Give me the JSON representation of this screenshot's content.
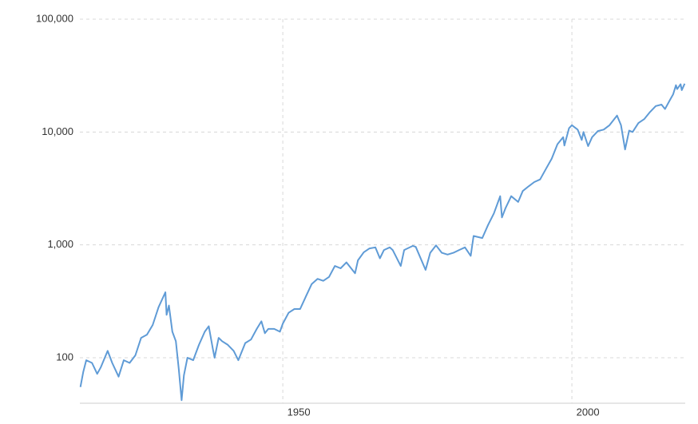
{
  "chart_data": {
    "type": "line",
    "log_y": true,
    "grid": true,
    "color": "#5f9bd6",
    "xlim": [
      1914.9,
      2019.6
    ],
    "xticks": [
      1950,
      2000
    ],
    "ylim": [
      39.5,
      100000
    ],
    "yticks": [
      {
        "value": 100,
        "label": "100"
      },
      {
        "value": 1000,
        "label": "1,000"
      },
      {
        "value": 10000,
        "label": "10,000"
      },
      {
        "value": 100000,
        "label": "100,000"
      }
    ],
    "x": [
      1915.0,
      1915.5,
      1916,
      1917,
      1917.9,
      1918.5,
      1919.7,
      1920.5,
      1921.6,
      1922.5,
      1923.5,
      1924.5,
      1925.5,
      1926.5,
      1927.5,
      1928.5,
      1929.7,
      1929.9,
      1930.3,
      1930.9,
      1931.5,
      1932.0,
      1932.5,
      1932.9,
      1933.5,
      1934.5,
      1935.5,
      1936.5,
      1937.2,
      1937.9,
      1938.2,
      1938.9,
      1939.5,
      1940.5,
      1941.5,
      1942.3,
      1943.5,
      1944.5,
      1945.5,
      1946.3,
      1946.9,
      1947.5,
      1948.5,
      1949.5,
      1950,
      1951,
      1952,
      1953,
      1954,
      1955,
      1956,
      1957,
      1958,
      1959,
      1960,
      1961,
      1962.5,
      1963,
      1964,
      1965,
      1966,
      1966.8,
      1967.5,
      1968.5,
      1969,
      1970.4,
      1971,
      1972.5,
      1973,
      1974.7,
      1975.5,
      1976.5,
      1977.5,
      1978.5,
      1979.5,
      1980.5,
      1981.5,
      1982.5,
      1983,
      1984.5,
      1985.5,
      1986.5,
      1987.6,
      1987.9,
      1988.5,
      1989.5,
      1990.7,
      1991.5,
      1992.5,
      1993.5,
      1994.5,
      1995.5,
      1996.5,
      1997.5,
      1998.5,
      1998.7,
      1999.5,
      2000,
      2001,
      2001.7,
      2002,
      2002.8,
      2003.5,
      2004.5,
      2005.5,
      2006.5,
      2007.8,
      2008.5,
      2009.2,
      2009.9,
      2010.5,
      2011.5,
      2012.5,
      2013.5,
      2014.5,
      2015.5,
      2016.1,
      2016.9,
      2017.5,
      2018.0,
      2018.2,
      2018.8,
      2019,
      2019.5
    ],
    "values": [
      55,
      75,
      95,
      90,
      72,
      82,
      115,
      90,
      68,
      95,
      90,
      105,
      150,
      160,
      195,
      280,
      380,
      240,
      290,
      170,
      140,
      80,
      42,
      70,
      100,
      95,
      130,
      170,
      190,
      120,
      100,
      150,
      140,
      130,
      115,
      95,
      135,
      145,
      180,
      210,
      165,
      180,
      180,
      170,
      200,
      250,
      270,
      270,
      350,
      450,
      500,
      480,
      520,
      650,
      620,
      700,
      560,
      730,
      860,
      930,
      950,
      760,
      900,
      950,
      900,
      650,
      900,
      980,
      960,
      600,
      850,
      990,
      850,
      820,
      850,
      900,
      950,
      800,
      1200,
      1150,
      1500,
      1900,
      2700,
      1750,
      2100,
      2700,
      2400,
      3000,
      3300,
      3600,
      3800,
      4700,
      5800,
      7800,
      9000,
      7600,
      10800,
      11500,
      10500,
      8500,
      10000,
      7500,
      9000,
      10200,
      10500,
      11500,
      14000,
      11500,
      7000,
      10300,
      10000,
      12000,
      13000,
      15000,
      17000,
      17500,
      16000,
      19000,
      21500,
      26000,
      24000,
      26500,
      23500,
      26800
    ]
  }
}
